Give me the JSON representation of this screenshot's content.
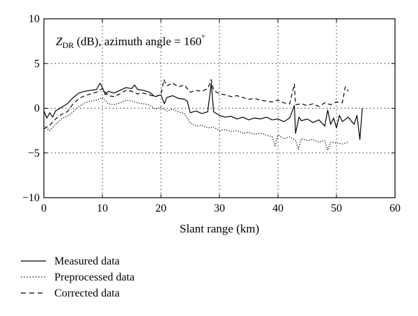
{
  "chart_data": {
    "type": "line",
    "annotation": {
      "var_main": "Z",
      "var_sub": "DR",
      "rest": "(dB), azimuth angle = 160",
      "degree": "°"
    },
    "xlabel": "Slant range (km)",
    "ylabel": "",
    "xlim": [
      0,
      60
    ],
    "ylim": [
      -10,
      10
    ],
    "x_ticks": [
      "0",
      "10",
      "20",
      "30",
      "40",
      "50",
      "60"
    ],
    "y_ticks": [
      "10",
      "5",
      "0",
      "−5",
      "−10"
    ],
    "grid": "dotted",
    "legend_position": "below",
    "series": [
      {
        "name": "Measured data",
        "style": "solid",
        "color": "#000000",
        "x": [
          0,
          0.5,
          1,
          1.5,
          2,
          3,
          4,
          5,
          6,
          7,
          8,
          9,
          9.6,
          10,
          10.5,
          11,
          12,
          13,
          14,
          15,
          15.5,
          16,
          17,
          18,
          19,
          20,
          20.6,
          21,
          22,
          23,
          24,
          24.5,
          25,
          26,
          27,
          28,
          28.6,
          29,
          30,
          31,
          32,
          33,
          34,
          35,
          36,
          37,
          38,
          39,
          40,
          41,
          42,
          42.8,
          43,
          43.6,
          44,
          45,
          46,
          47,
          48,
          48.5,
          49,
          49.5,
          50,
          50.5,
          51,
          52,
          53,
          53.5,
          54,
          54.4
        ],
        "y": [
          -0.3,
          -1.1,
          -0.5,
          -1.0,
          -0.3,
          0.1,
          0.5,
          1.2,
          1.7,
          1.9,
          2.0,
          2.1,
          2.8,
          2.3,
          1.5,
          1.9,
          1.7,
          2.0,
          2.3,
          2.2,
          2.6,
          2.1,
          2.0,
          1.8,
          1.3,
          1.5,
          0.5,
          1.2,
          1.4,
          1.1,
          1.0,
          0.8,
          -0.5,
          -0.3,
          -0.6,
          -0.4,
          2.8,
          -0.4,
          -0.8,
          -1.0,
          -0.9,
          -1.2,
          -1.0,
          -1.3,
          -1.1,
          -1.2,
          -1.0,
          -1.3,
          -1.2,
          -1.5,
          -1.1,
          0.3,
          -2.8,
          -1.0,
          -1.4,
          -1.2,
          -1.6,
          -1.3,
          -2.0,
          -0.2,
          -1.8,
          -1.1,
          -2.2,
          -0.8,
          -1.5,
          -1.0,
          -1.8,
          -0.8,
          -3.5,
          0.0
        ]
      },
      {
        "name": "Preprocessed data",
        "style": "dotted",
        "color": "#000000",
        "x": [
          0,
          1,
          2,
          3,
          4,
          5,
          6,
          7,
          8,
          9,
          10,
          11,
          12,
          13,
          14,
          15,
          16,
          17,
          18,
          19,
          20,
          21,
          22,
          23,
          24,
          25,
          26,
          27,
          28,
          29,
          30,
          31,
          32,
          33,
          34,
          35,
          36,
          37,
          38,
          39,
          39.5,
          40,
          41,
          42,
          43,
          43.5,
          44,
          45,
          46,
          47,
          48,
          48.5,
          49,
          50,
          51,
          52
        ],
        "y": [
          -2.0,
          -2.5,
          -1.8,
          -1.2,
          -0.9,
          -0.4,
          0.2,
          0.6,
          0.8,
          0.9,
          1.2,
          0.5,
          0.4,
          0.6,
          0.9,
          0.8,
          0.6,
          0.5,
          0.4,
          -0.1,
          0.1,
          -0.3,
          -0.1,
          -0.4,
          -0.6,
          -1.6,
          -2.0,
          -1.9,
          -2.2,
          -2.1,
          -2.5,
          -2.4,
          -2.6,
          -2.5,
          -2.8,
          -2.7,
          -2.9,
          -2.8,
          -3.0,
          -3.2,
          -4.2,
          -3.0,
          -3.4,
          -3.2,
          -3.6,
          -4.6,
          -3.4,
          -3.6,
          -3.5,
          -3.8,
          -3.6,
          -4.7,
          -3.8,
          -3.9,
          -4.0,
          -3.8
        ]
      },
      {
        "name": "Corrected data",
        "style": "dashed",
        "color": "#000000",
        "x": [
          0,
          1,
          2,
          3,
          4,
          5,
          6,
          7,
          8,
          9,
          10,
          11,
          12,
          13,
          14,
          15,
          16,
          17,
          18,
          19,
          20,
          20.5,
          21,
          22,
          23,
          24,
          25,
          26,
          27,
          28,
          28.6,
          29,
          30,
          31,
          32,
          33,
          34,
          35,
          36,
          37,
          38,
          39,
          40,
          41,
          42,
          42.8,
          43,
          44,
          45,
          46,
          47,
          48,
          49,
          50,
          51,
          51.5,
          52
        ],
        "y": [
          -2.3,
          -1.9,
          -1.2,
          -0.7,
          -0.4,
          0.5,
          1.1,
          1.4,
          1.6,
          1.8,
          2.2,
          1.4,
          1.3,
          1.6,
          2.0,
          1.9,
          1.6,
          1.7,
          1.5,
          1.3,
          1.5,
          3.2,
          2.5,
          2.8,
          2.4,
          2.6,
          1.8,
          2.0,
          1.9,
          2.2,
          3.2,
          2.0,
          1.6,
          1.5,
          1.3,
          1.4,
          1.2,
          1.0,
          1.1,
          0.9,
          0.8,
          0.7,
          0.9,
          0.6,
          0.5,
          2.7,
          0.4,
          0.5,
          0.3,
          0.5,
          0.2,
          0.6,
          0.4,
          0.7,
          0.6,
          2.4,
          1.9
        ]
      }
    ]
  }
}
